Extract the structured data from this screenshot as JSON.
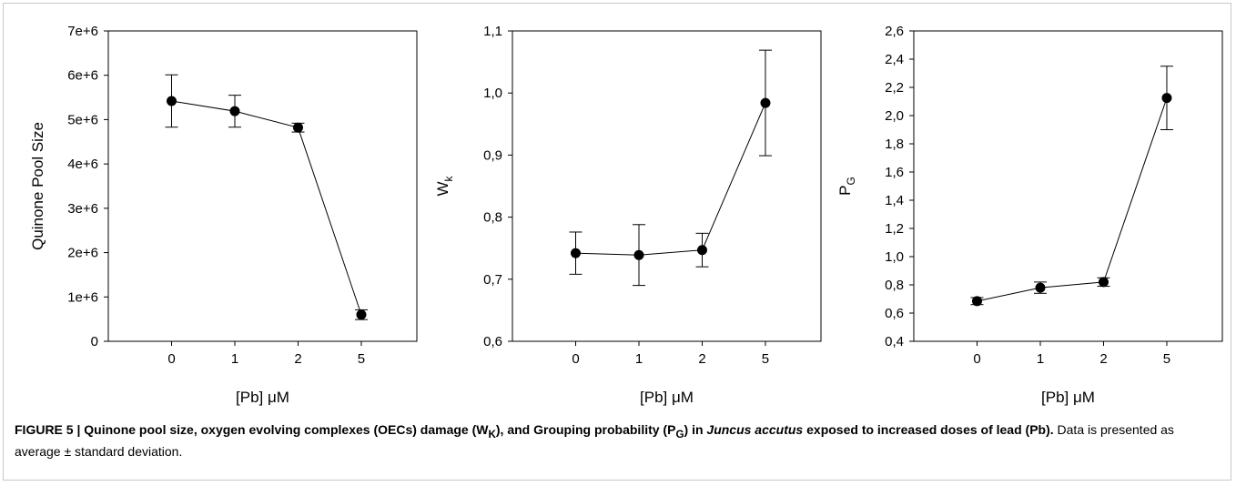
{
  "chart_data": [
    {
      "type": "line",
      "categories": [
        "0",
        "1",
        "2",
        "5"
      ],
      "values": [
        5420000,
        5190000,
        4820000,
        600000
      ],
      "error": [
        590000,
        360000,
        100000,
        110000
      ],
      "ylim": [
        0,
        7000000
      ],
      "yticks": [
        0,
        1000000,
        2000000,
        3000000,
        4000000,
        5000000,
        6000000,
        7000000
      ],
      "ytick_labels": [
        "0",
        "1e+6",
        "2e+6",
        "3e+6",
        "4e+6",
        "5e+6",
        "6e+6",
        "7e+6"
      ],
      "xlabel_main": "[Pb] ",
      "xlabel_unit": "μM",
      "ylabel_main": "Quinone Pool Size",
      "ylabel_sub": "",
      "grid": false,
      "legend": "none"
    },
    {
      "type": "line",
      "categories": [
        "0",
        "1",
        "2",
        "5"
      ],
      "values": [
        0.742,
        0.739,
        0.747,
        0.984
      ],
      "error": [
        0.034,
        0.049,
        0.027,
        0.085
      ],
      "ylim": [
        0.6,
        1.1
      ],
      "yticks": [
        0.6,
        0.7,
        0.8,
        0.9,
        1.0,
        1.1
      ],
      "ytick_labels": [
        "0,6",
        "0,7",
        "0,8",
        "0,9",
        "1,0",
        "1,1"
      ],
      "xlabel_main": "[Pb] ",
      "xlabel_unit": "μM",
      "ylabel_main": "W",
      "ylabel_sub": "k",
      "grid": false,
      "legend": "none"
    },
    {
      "type": "line",
      "categories": [
        "0",
        "1",
        "2",
        "5"
      ],
      "values": [
        0.685,
        0.78,
        0.82,
        2.125
      ],
      "error": [
        0.025,
        0.04,
        0.03,
        0.225
      ],
      "ylim": [
        0.4,
        2.6
      ],
      "yticks": [
        0.4,
        0.6,
        0.8,
        1.0,
        1.2,
        1.4,
        1.6,
        1.8,
        2.0,
        2.2,
        2.4,
        2.6
      ],
      "ytick_labels": [
        "0,4",
        "0,6",
        "0,8",
        "1,0",
        "1,2",
        "1,4",
        "1,6",
        "1,8",
        "2,0",
        "2,2",
        "2,4",
        "2,6"
      ],
      "xlabel_main": "[Pb] ",
      "xlabel_unit": "μM",
      "ylabel_main": "P",
      "ylabel_sub": "G",
      "grid": false,
      "legend": "none"
    }
  ],
  "caption": {
    "bold_1": "FIGURE 5 | Quinone pool size, oxygen evolving complexes (OECs) damage (W",
    "bold_1_sub": "K",
    "bold_2": "), and Grouping probability (P",
    "bold_2_sub": "G",
    "bold_3": ") in ",
    "italic": "Juncus accutus",
    "bold_4": " exposed to increased doses of lead (Pb).",
    "plain": " Data is presented as average ± standard deviation."
  }
}
